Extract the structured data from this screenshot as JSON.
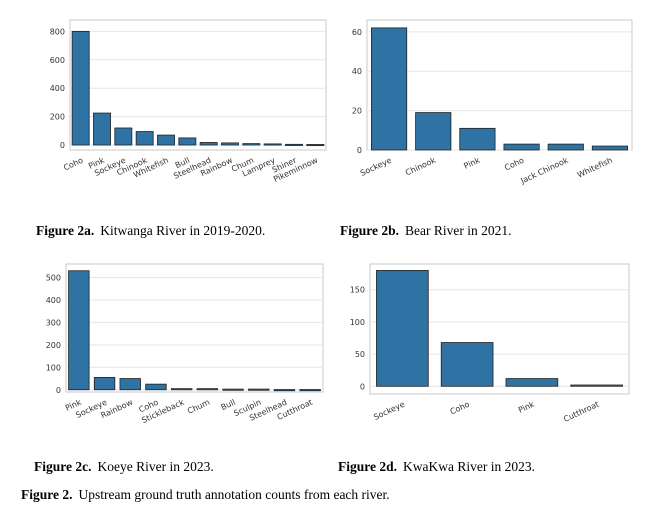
{
  "figure_caption": {
    "label": "Figure 2.",
    "text": "Upstream ground truth annotation counts from each river."
  },
  "bar_color": "#2e73a4",
  "chart_data": [
    {
      "type": "bar",
      "caption_label": "Figure 2a.",
      "caption_text": "Kitwanga River in 2019-2020.",
      "categories": [
        "Coho",
        "Pink",
        "Sockeye",
        "Chinook",
        "Whitefish",
        "Bull",
        "Steelhead",
        "Rainbow",
        "Chum",
        "Lamprey",
        "Shiner",
        "Pikeminnow"
      ],
      "values": [
        800,
        225,
        120,
        95,
        70,
        50,
        18,
        15,
        10,
        8,
        5,
        4
      ],
      "ylim": [
        -35,
        880
      ],
      "yticks": [
        0,
        200,
        400,
        600,
        800
      ],
      "grid": true
    },
    {
      "type": "bar",
      "caption_label": "Figure 2b.",
      "caption_text": "Bear River in 2021.",
      "categories": [
        "Sockeye",
        "Chinook",
        "Pink",
        "Coho",
        "Jack Chinook",
        "Whitefish"
      ],
      "values": [
        62,
        19,
        11,
        3,
        3,
        2
      ],
      "ylim": [
        0,
        66
      ],
      "yticks": [
        0,
        20,
        40,
        60
      ],
      "grid": true
    },
    {
      "type": "bar",
      "caption_label": "Figure 2c.",
      "caption_text": "Koeye River in 2023.",
      "categories": [
        "Pink",
        "Sockeye",
        "Rainbow",
        "Coho",
        "Stickleback",
        "Chum",
        "Bull",
        "Sculpin",
        "Steelhead",
        "Cutthroat"
      ],
      "values": [
        530,
        55,
        50,
        25,
        5,
        5,
        3,
        3,
        1,
        1
      ],
      "ylim": [
        -10,
        560
      ],
      "yticks": [
        0,
        100,
        200,
        300,
        400,
        500
      ],
      "grid": true
    },
    {
      "type": "bar",
      "caption_label": "Figure 2d.",
      "caption_text": "KwaKwa River in 2023.",
      "categories": [
        "Sockeye",
        "Coho",
        "Pink",
        "Cutthroat"
      ],
      "values": [
        180,
        68,
        12,
        2
      ],
      "ylim": [
        -12,
        190
      ],
      "yticks": [
        0,
        50,
        100,
        150
      ],
      "grid": true
    }
  ]
}
